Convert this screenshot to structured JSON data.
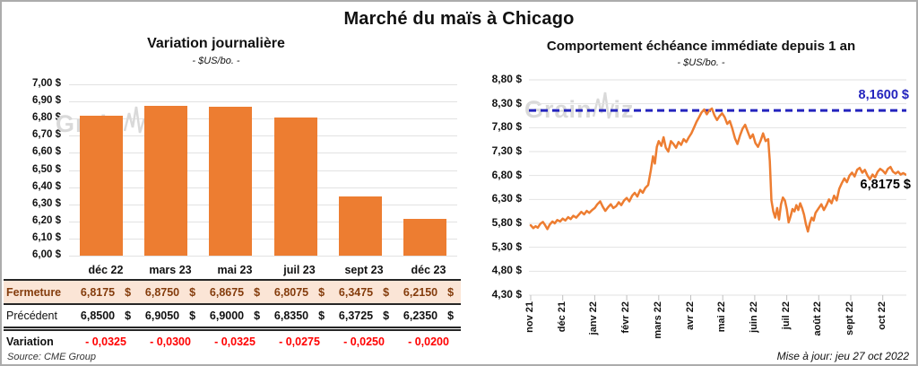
{
  "page": {
    "title": "Marché du maïs à Chicago",
    "update_note": "Mise à jour: jeu 27 oct 2022",
    "source_note": "Source: CME Group",
    "watermark": {
      "brand_full": "GrainWiz",
      "brand_part1": "Grain",
      "brand_part2": "iz"
    }
  },
  "table": {
    "col_headers": [
      "déc 22",
      "mars 23",
      "mai 23",
      "juil 23",
      "sept 23",
      "déc 23"
    ],
    "dollar": "$",
    "rows": [
      {
        "label": "Fermeture",
        "currency": "$",
        "values": [
          "6,8175",
          "6,8750",
          "6,8675",
          "6,8075",
          "6,3475",
          "6,2150"
        ]
      },
      {
        "label": "Précédent",
        "currency": "$",
        "values": [
          "6,8500",
          "6,9050",
          "6,9000",
          "6,8350",
          "6,3725",
          "6,2350"
        ]
      },
      {
        "label": "Variation",
        "values": [
          "- 0,0325",
          "- 0,0300",
          "- 0,0325",
          "- 0,0275",
          "- 0,0250",
          "- 0,0200"
        ]
      }
    ]
  },
  "chart_data": [
    {
      "type": "bar",
      "title": "Variation journalière",
      "subtitle": "- $US/bo. -",
      "categories": [
        "déc 22",
        "mars 23",
        "mai 23",
        "juil 23",
        "sept 23",
        "déc 23"
      ],
      "values": [
        6.8175,
        6.875,
        6.8675,
        6.8075,
        6.3475,
        6.215
      ],
      "ylim": [
        6.0,
        7.0
      ],
      "ytick_step": 0.1,
      "ytick_labels": [
        "7,00 $",
        "6,90 $",
        "6,80 $",
        "6,70 $",
        "6,60 $",
        "6,50 $",
        "6,40 $",
        "6,30 $",
        "6,20 $",
        "6,10 $",
        "6,00 $"
      ],
      "bar_color": "#ED7D31",
      "grid": true,
      "legend": "none"
    },
    {
      "type": "line",
      "title": "Comportement échéance immédiate depuis 1 an",
      "subtitle": "- $US/bo. -",
      "xtick_labels": [
        "nov 21",
        "déc 21",
        "janv 22",
        "févr 22",
        "mars 22",
        "avr 22",
        "mai 22",
        "juin 22",
        "juil 22",
        "août 22",
        "sept 22",
        "oct 22"
      ],
      "ylim": [
        4.3,
        8.8
      ],
      "ytick_step": 0.5,
      "ytick_labels": [
        "8,80 $",
        "8,30 $",
        "7,80 $",
        "7,30 $",
        "6,80 $",
        "6,30 $",
        "5,80 $",
        "5,30 $",
        "4,80 $",
        "4,30 $"
      ],
      "line_color": "#ED7D31",
      "grid": true,
      "legend": "none",
      "reference_line": {
        "value": 8.16,
        "label": "8,1600 $",
        "color": "#2424BE",
        "style": "dashed"
      },
      "last_point": {
        "value": 6.8175,
        "label": "6,8175 $"
      },
      "series": [
        {
          "name": "échéance immédiate",
          "points": [
            [
              0.0,
              5.76
            ],
            [
              0.08,
              5.7
            ],
            [
              0.15,
              5.74
            ],
            [
              0.22,
              5.71
            ],
            [
              0.3,
              5.79
            ],
            [
              0.38,
              5.83
            ],
            [
              0.45,
              5.76
            ],
            [
              0.52,
              5.68
            ],
            [
              0.6,
              5.78
            ],
            [
              0.68,
              5.84
            ],
            [
              0.75,
              5.8
            ],
            [
              0.83,
              5.87
            ],
            [
              0.92,
              5.84
            ],
            [
              1.0,
              5.9
            ],
            [
              1.08,
              5.86
            ],
            [
              1.17,
              5.93
            ],
            [
              1.25,
              5.89
            ],
            [
              1.33,
              5.96
            ],
            [
              1.42,
              5.92
            ],
            [
              1.5,
              5.98
            ],
            [
              1.58,
              6.04
            ],
            [
              1.67,
              5.99
            ],
            [
              1.75,
              6.06
            ],
            [
              1.83,
              6.02
            ],
            [
              1.92,
              6.08
            ],
            [
              2.0,
              6.12
            ],
            [
              2.08,
              6.2
            ],
            [
              2.17,
              6.26
            ],
            [
              2.25,
              6.15
            ],
            [
              2.33,
              6.06
            ],
            [
              2.42,
              6.14
            ],
            [
              2.5,
              6.2
            ],
            [
              2.58,
              6.12
            ],
            [
              2.67,
              6.16
            ],
            [
              2.75,
              6.24
            ],
            [
              2.83,
              6.18
            ],
            [
              2.92,
              6.28
            ],
            [
              3.0,
              6.33
            ],
            [
              3.08,
              6.26
            ],
            [
              3.17,
              6.38
            ],
            [
              3.25,
              6.44
            ],
            [
              3.33,
              6.36
            ],
            [
              3.42,
              6.5
            ],
            [
              3.5,
              6.44
            ],
            [
              3.58,
              6.54
            ],
            [
              3.67,
              6.6
            ],
            [
              3.75,
              6.9
            ],
            [
              3.82,
              7.2
            ],
            [
              3.88,
              7.05
            ],
            [
              3.94,
              7.4
            ],
            [
              4.0,
              7.52
            ],
            [
              4.08,
              7.42
            ],
            [
              4.15,
              7.6
            ],
            [
              4.22,
              7.38
            ],
            [
              4.3,
              7.3
            ],
            [
              4.38,
              7.52
            ],
            [
              4.46,
              7.46
            ],
            [
              4.54,
              7.38
            ],
            [
              4.62,
              7.5
            ],
            [
              4.7,
              7.44
            ],
            [
              4.78,
              7.56
            ],
            [
              4.86,
              7.5
            ],
            [
              4.94,
              7.6
            ],
            [
              5.02,
              7.68
            ],
            [
              5.1,
              7.8
            ],
            [
              5.18,
              7.92
            ],
            [
              5.26,
              8.02
            ],
            [
              5.34,
              8.12
            ],
            [
              5.42,
              8.18
            ],
            [
              5.5,
              8.08
            ],
            [
              5.58,
              8.16
            ],
            [
              5.66,
              8.2
            ],
            [
              5.74,
              8.06
            ],
            [
              5.82,
              7.96
            ],
            [
              5.9,
              8.04
            ],
            [
              5.98,
              8.1
            ],
            [
              6.06,
              8.02
            ],
            [
              6.14,
              7.88
            ],
            [
              6.22,
              7.94
            ],
            [
              6.3,
              7.78
            ],
            [
              6.38,
              7.58
            ],
            [
              6.46,
              7.46
            ],
            [
              6.54,
              7.64
            ],
            [
              6.62,
              7.78
            ],
            [
              6.7,
              7.86
            ],
            [
              6.78,
              7.72
            ],
            [
              6.86,
              7.58
            ],
            [
              6.94,
              7.66
            ],
            [
              7.02,
              7.48
            ],
            [
              7.1,
              7.4
            ],
            [
              7.18,
              7.52
            ],
            [
              7.26,
              7.68
            ],
            [
              7.34,
              7.52
            ],
            [
              7.42,
              7.56
            ],
            [
              7.47,
              7.1
            ],
            [
              7.52,
              6.28
            ],
            [
              7.58,
              6.05
            ],
            [
              7.64,
              5.92
            ],
            [
              7.7,
              6.12
            ],
            [
              7.76,
              5.88
            ],
            [
              7.82,
              6.2
            ],
            [
              7.88,
              6.34
            ],
            [
              7.94,
              6.28
            ],
            [
              8.0,
              6.1
            ],
            [
              8.06,
              5.82
            ],
            [
              8.12,
              5.95
            ],
            [
              8.18,
              6.1
            ],
            [
              8.24,
              6.05
            ],
            [
              8.3,
              6.18
            ],
            [
              8.36,
              6.08
            ],
            [
              8.42,
              6.22
            ],
            [
              8.48,
              6.12
            ],
            [
              8.54,
              5.98
            ],
            [
              8.6,
              5.78
            ],
            [
              8.66,
              5.63
            ],
            [
              8.72,
              5.8
            ],
            [
              8.78,
              5.92
            ],
            [
              8.84,
              5.86
            ],
            [
              8.9,
              6.02
            ],
            [
              9.0,
              6.12
            ],
            [
              9.08,
              6.2
            ],
            [
              9.16,
              6.08
            ],
            [
              9.24,
              6.18
            ],
            [
              9.32,
              6.3
            ],
            [
              9.4,
              6.22
            ],
            [
              9.48,
              6.38
            ],
            [
              9.56,
              6.28
            ],
            [
              9.64,
              6.52
            ],
            [
              9.72,
              6.64
            ],
            [
              9.8,
              6.74
            ],
            [
              9.88,
              6.66
            ],
            [
              9.96,
              6.8
            ],
            [
              10.04,
              6.86
            ],
            [
              10.12,
              6.78
            ],
            [
              10.2,
              6.92
            ],
            [
              10.28,
              6.96
            ],
            [
              10.36,
              6.86
            ],
            [
              10.44,
              6.92
            ],
            [
              10.52,
              6.8
            ],
            [
              10.6,
              6.72
            ],
            [
              10.68,
              6.82
            ],
            [
              10.76,
              6.76
            ],
            [
              10.84,
              6.88
            ],
            [
              10.92,
              6.94
            ],
            [
              11.0,
              6.9
            ],
            [
              11.08,
              6.84
            ],
            [
              11.16,
              6.94
            ],
            [
              11.24,
              6.98
            ],
            [
              11.32,
              6.88
            ],
            [
              11.4,
              6.84
            ],
            [
              11.48,
              6.88
            ],
            [
              11.56,
              6.82
            ],
            [
              11.64,
              6.85
            ],
            [
              11.72,
              6.8175
            ]
          ]
        }
      ]
    }
  ]
}
